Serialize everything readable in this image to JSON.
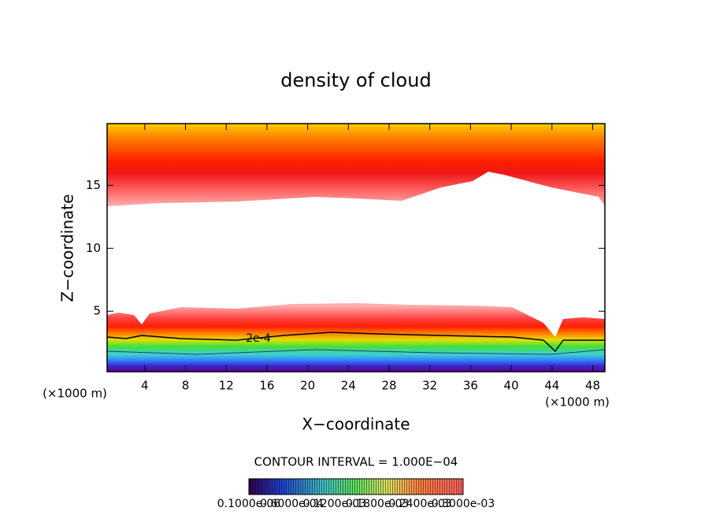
{
  "chart_data": {
    "type": "contour",
    "title": "density of cloud",
    "x_label": "X−coordinate",
    "y_label": "Z−coordinate",
    "x_unit": "(×1000 m)",
    "xlim": [
      0.3,
      49.2
    ],
    "ylim": [
      0.2,
      19.9
    ],
    "xticks": [
      4,
      8,
      12,
      16,
      20,
      24,
      28,
      32,
      36,
      40,
      44,
      48
    ],
    "yticks": [
      5,
      10,
      15
    ],
    "contour_labels": [
      "2e-4"
    ],
    "contour_interval": "CONTOUR INTERVAL = 1.000E−04",
    "colorbar_labels": [
      "0.1000e-06",
      "0.6000e-04",
      "0.1200e-03",
      "0.1800e-03",
      "0.2400e-03",
      "0.3000e-03"
    ]
  }
}
